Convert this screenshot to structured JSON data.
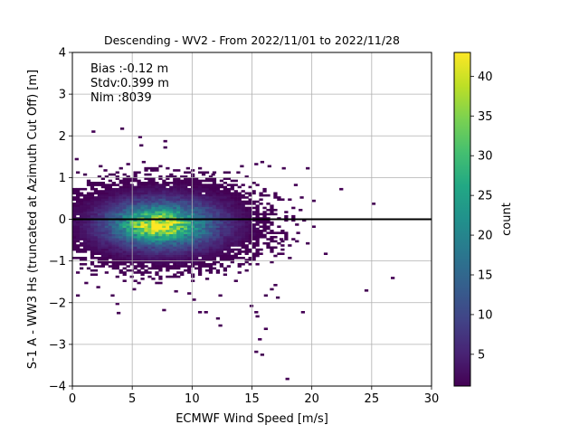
{
  "chart_data": {
    "type": "heatmap",
    "title": "Descending - WV2 - From 2022/11/01 to 2022/11/28",
    "xlabel": "ECMWF Wind Speed [m/s]",
    "ylabel": "S-1 A - WW3 Hs (truncated at Azimuth Cut Off) [m]",
    "xlim": [
      0,
      30
    ],
    "ylim": [
      -4,
      4
    ],
    "xticks": [
      0,
      5,
      10,
      15,
      20,
      25,
      30
    ],
    "yticks": [
      -4,
      -3,
      -2,
      -1,
      0,
      1,
      2,
      3,
      4
    ],
    "grid": true,
    "zero_line_y": 0,
    "stats_lines": [
      "Bias :-0.12 m",
      "Stdv:0.399 m",
      "Nim :8039"
    ],
    "colorbar": {
      "label": "count",
      "range": [
        1,
        43
      ],
      "ticks": [
        5,
        10,
        15,
        20,
        25,
        30,
        35,
        40
      ],
      "colormap": "viridis"
    },
    "bins": {
      "x_width": 0.3,
      "y_width": 0.05,
      "mean_x": 7.5,
      "mean_y": -0.12,
      "sd_x": 3.3,
      "sd_y": 0.4,
      "peak_count": 43,
      "peak_location": [
        7.0,
        -0.15
      ],
      "x_extent": [
        0,
        20.5
      ],
      "outliers": [
        [
          1.6,
          2.08
        ],
        [
          4.0,
          2.15
        ],
        [
          5.5,
          1.95
        ],
        [
          5.6,
          1.75
        ],
        [
          7.6,
          1.85
        ],
        [
          7.6,
          1.7
        ],
        [
          0.2,
          1.42
        ],
        [
          0.3,
          1.1
        ],
        [
          17.5,
          1.2
        ],
        [
          19.5,
          1.2
        ],
        [
          22.3,
          0.7
        ],
        [
          25.0,
          0.35
        ],
        [
          20.0,
          0.42
        ],
        [
          20.0,
          -0.2
        ],
        [
          21.0,
          -0.85
        ],
        [
          18.0,
          -0.95
        ],
        [
          26.6,
          -1.43
        ],
        [
          24.4,
          -1.73
        ],
        [
          0.3,
          -1.85
        ],
        [
          3.2,
          -1.85
        ],
        [
          3.6,
          -2.05
        ],
        [
          3.7,
          -2.27
        ],
        [
          7.5,
          -2.2
        ],
        [
          10.5,
          -2.25
        ],
        [
          11.0,
          -2.25
        ],
        [
          12.0,
          -2.4
        ],
        [
          12.2,
          -2.57
        ],
        [
          15.2,
          -2.25
        ],
        [
          15.3,
          -2.35
        ],
        [
          16.0,
          -2.65
        ],
        [
          19.1,
          -2.25
        ],
        [
          15.2,
          -3.2
        ],
        [
          15.5,
          -2.9
        ],
        [
          15.7,
          -3.27
        ],
        [
          17.8,
          -3.85
        ],
        [
          14.8,
          -2.1
        ],
        [
          16.5,
          -1.7
        ],
        [
          17.0,
          -1.9
        ],
        [
          16.0,
          -1.85
        ],
        [
          16.8,
          -1.6
        ],
        [
          13.5,
          -1.5
        ],
        [
          12.2,
          -1.85
        ],
        [
          10.0,
          -1.95
        ],
        [
          9.6,
          -1.8
        ],
        [
          8.5,
          -1.75
        ],
        [
          5.0,
          -1.7
        ],
        [
          2.0,
          -1.65
        ],
        [
          1.0,
          -1.55
        ],
        [
          16.3,
          1.25
        ],
        [
          15.7,
          1.35
        ],
        [
          15.2,
          1.3
        ],
        [
          14.0,
          1.25
        ],
        [
          13.7,
          1.1
        ],
        [
          11.6,
          1.05
        ],
        [
          9.5,
          1.2
        ],
        [
          6.5,
          1.15
        ],
        [
          4.5,
          1.3
        ],
        [
          5.8,
          1.35
        ],
        [
          2.6,
          1.15
        ],
        [
          2.2,
          1.25
        ],
        [
          18.5,
          0.8
        ],
        [
          19.0,
          0.5
        ],
        [
          18.7,
          -0.35
        ],
        [
          19.5,
          -0.6
        ],
        [
          17.3,
          -0.5
        ]
      ]
    }
  }
}
